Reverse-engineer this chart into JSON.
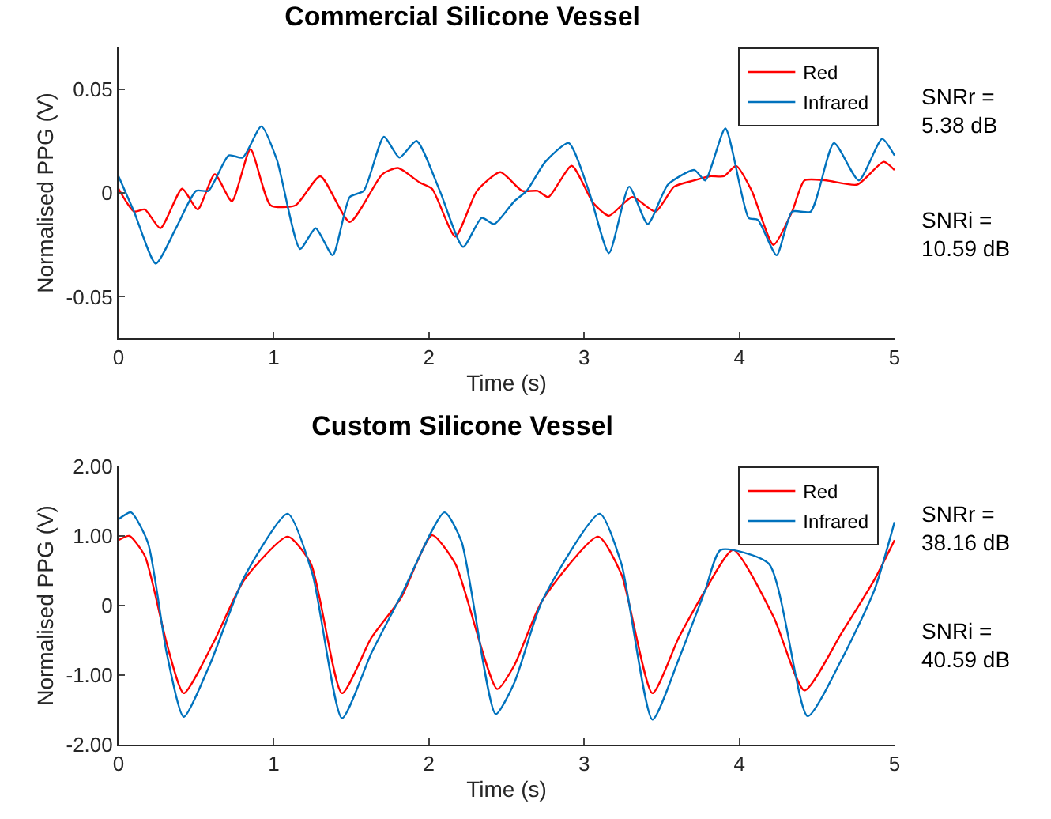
{
  "chart_data": [
    {
      "type": "line",
      "title": "Commercial Silicone Vessel",
      "xlabel": "Time (s)",
      "ylabel": "Normalised PPG (V)",
      "xlim": [
        0,
        5
      ],
      "xticks": [
        0,
        1,
        2,
        3,
        4,
        5
      ],
      "ylim": [
        -0.07,
        0.07
      ],
      "yticks": [
        -0.05,
        0,
        0.05
      ],
      "grid": false,
      "legend": "top right",
      "marker": "none",
      "line_style": "solid",
      "annotations": [
        "SNRr =\n5.38 dB",
        "SNRi =\n10.59 dB"
      ],
      "series": [
        {
          "name": "Red",
          "color": "#ff0000",
          "x": [
            0,
            0.1,
            0.17,
            0.27,
            0.41,
            0.51,
            0.62,
            0.73,
            0.85,
            0.98,
            1.14,
            1.3,
            1.49,
            1.7,
            1.8,
            1.94,
            2.02,
            2.17,
            2.31,
            2.46,
            2.6,
            2.7,
            2.77,
            2.92,
            3.06,
            3.16,
            3.31,
            3.46,
            3.58,
            3.71,
            3.81,
            3.9,
            3.98,
            4.08,
            4.22,
            4.34,
            4.42,
            4.56,
            4.76,
            4.93,
            5.0
          ],
          "values": [
            0.002,
            -0.009,
            -0.008,
            -0.017,
            0.002,
            -0.008,
            0.009,
            -0.004,
            0.021,
            -0.006,
            -0.006,
            0.008,
            -0.014,
            0.009,
            0.012,
            0.005,
            0.002,
            -0.021,
            0.001,
            0.01,
            0.001,
            0.001,
            -0.002,
            0.013,
            -0.005,
            -0.011,
            -0.002,
            -0.009,
            0.003,
            0.006,
            0.008,
            0.008,
            0.013,
            0.001,
            -0.025,
            -0.009,
            0.006,
            0.006,
            0.004,
            0.015,
            0.011
          ]
        },
        {
          "name": "Infrared",
          "color": "#0072bd",
          "x": [
            0,
            0.1,
            0.24,
            0.37,
            0.5,
            0.58,
            0.71,
            0.8,
            0.92,
            1.02,
            1.17,
            1.27,
            1.38,
            1.49,
            1.58,
            1.71,
            1.81,
            1.92,
            2.07,
            2.22,
            2.34,
            2.42,
            2.55,
            2.63,
            2.75,
            2.9,
            3.03,
            3.16,
            3.29,
            3.41,
            3.54,
            3.71,
            3.78,
            3.91,
            4.06,
            4.12,
            4.24,
            4.34,
            4.46,
            4.61,
            4.77,
            4.92,
            5.0
          ],
          "values": [
            0.008,
            -0.009,
            -0.034,
            -0.017,
            0.001,
            0.001,
            0.018,
            0.017,
            0.032,
            0.016,
            -0.027,
            -0.017,
            -0.03,
            -0.002,
            0.001,
            0.027,
            0.017,
            0.025,
            0.001,
            -0.026,
            -0.012,
            -0.015,
            -0.004,
            0.001,
            0.015,
            0.024,
            0.001,
            -0.029,
            0.003,
            -0.015,
            0.004,
            0.011,
            0.006,
            0.031,
            -0.012,
            -0.013,
            -0.03,
            -0.009,
            -0.009,
            0.024,
            0.006,
            0.026,
            0.018
          ]
        }
      ]
    },
    {
      "type": "line",
      "title": "Custom Silicone Vessel",
      "xlabel": "Time (s)",
      "ylabel": "Normalised PPG (V)",
      "xlim": [
        0,
        5
      ],
      "xticks": [
        0,
        1,
        2,
        3,
        4,
        5
      ],
      "ylim": [
        -2,
        2
      ],
      "yticks": [
        {
          "value": -2,
          "label": "-2.00"
        },
        {
          "value": -1,
          "label": "-1.00"
        },
        0,
        {
          "value": 1,
          "label": "1.00"
        },
        {
          "value": 2,
          "label": "2.00"
        }
      ],
      "grid": false,
      "legend": "top right",
      "marker": "none",
      "line_style": "solid",
      "annotations": [
        "SNRr =\n38.16 dB",
        "SNRi =\n40.59 dB"
      ],
      "series": [
        {
          "name": "Red",
          "color": "#ff0000",
          "x": [
            0,
            0.07,
            0.17,
            0.31,
            0.42,
            0.61,
            0.81,
            1.09,
            1.24,
            1.44,
            1.63,
            1.82,
            2.02,
            2.17,
            2.44,
            2.55,
            2.73,
            3.09,
            3.24,
            3.44,
            3.61,
            3.78,
            3.96,
            4.22,
            4.42,
            4.66,
            4.87,
            5.0
          ],
          "values": [
            0.94,
            1.0,
            0.71,
            -0.54,
            -1.26,
            -0.54,
            0.37,
            0.99,
            0.6,
            -1.26,
            -0.46,
            0.11,
            1.01,
            0.6,
            -1.2,
            -0.86,
            0.07,
            0.99,
            0.45,
            -1.26,
            -0.46,
            0.22,
            0.8,
            -0.16,
            -1.22,
            -0.39,
            0.37,
            0.94
          ]
        },
        {
          "name": "Infrared",
          "color": "#0072bd",
          "x": [
            0,
            0.08,
            0.19,
            0.31,
            0.42,
            0.59,
            0.81,
            1.09,
            1.25,
            1.44,
            1.63,
            1.82,
            2.1,
            2.21,
            2.43,
            2.55,
            2.73,
            3.1,
            3.24,
            3.44,
            3.61,
            3.78,
            3.88,
            4.19,
            4.44,
            4.66,
            4.87,
            5.0
          ],
          "values": [
            1.24,
            1.34,
            0.9,
            -0.68,
            -1.6,
            -0.84,
            0.41,
            1.32,
            0.45,
            -1.62,
            -0.68,
            0.14,
            1.34,
            0.92,
            -1.56,
            -1.11,
            0.07,
            1.32,
            0.6,
            -1.64,
            -0.77,
            0.22,
            0.8,
            0.6,
            -1.59,
            -0.77,
            0.22,
            1.2
          ]
        }
      ]
    }
  ]
}
